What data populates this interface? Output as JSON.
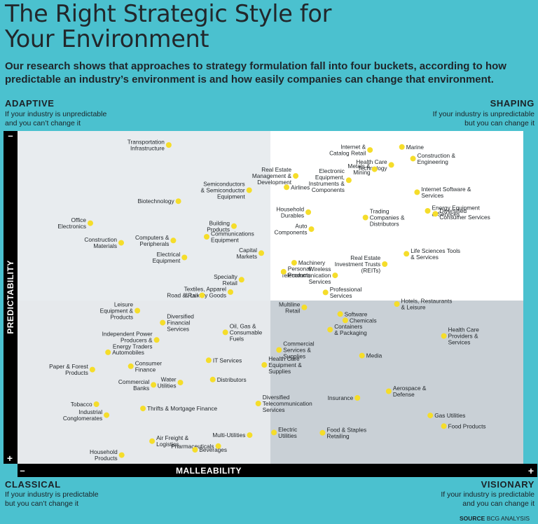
{
  "header": {
    "title_line1": "The Right Strategic Style for",
    "title_line2": "Your Environment",
    "subtitle": "Our research shows that approaches to strategy formulation fall into four buckets, according to how predictable an industry’s environment is and how easily companies can change that environment."
  },
  "quadrants": {
    "adaptive": {
      "name": "ADAPTIVE",
      "line1": "If your industry is unpredictable",
      "line2": "and you can’t change it"
    },
    "shaping": {
      "name": "SHAPING",
      "line1": "If your industry is unpredictable",
      "line2": "but you can change it"
    },
    "classical": {
      "name": "CLASSICAL",
      "line1": "If your industry is predictable",
      "line2": "but you can’t change it"
    },
    "visionary": {
      "name": "VISIONARY",
      "line1": "If your industry is predictable",
      "line2": "and you can change it"
    }
  },
  "source": {
    "label": "SOURCE",
    "text": "BCG ANALYSIS"
  },
  "colors": {
    "background": "#4bc1cf",
    "quad_tl": "#e8ecef",
    "quad_tr": "#ffffff",
    "quad_bl": "#e6e9ec",
    "quad_br": "#c9d0d6",
    "dot": "#f5dd2a",
    "axis": "#000000"
  },
  "chart_data": {
    "type": "scatter",
    "xlabel": "MALLEABILITY",
    "ylabel": "PREDICTABILITY",
    "x_axis_ends": {
      "low": "–",
      "high": "+"
    },
    "y_axis_ends": {
      "top": "–",
      "bottom": "+"
    },
    "xlim": [
      0,
      100
    ],
    "ylim": [
      0,
      100
    ],
    "x_split": 50,
    "y_split": 50,
    "legend": "none",
    "grid": false,
    "points": [
      {
        "label": "Transportation\nInfrastructure",
        "x": 29.9,
        "y": 95.8
      },
      {
        "label": "Internet &\nCatalog Retail",
        "x": 69.7,
        "y": 94.3
      },
      {
        "label": "Marine",
        "x": 76.0,
        "y": 95.2
      },
      {
        "label": "Construction &\nEngineering",
        "x": 78.2,
        "y": 91.7
      },
      {
        "label": "Real Estate\nManagement &\nDevelopment",
        "x": 55.0,
        "y": 86.5
      },
      {
        "label": "Electronic\nEquipment,\nInstruments &\nComponents",
        "x": 65.5,
        "y": 85.2
      },
      {
        "label": "Health Care\nTechnology",
        "x": 73.9,
        "y": 89.8
      },
      {
        "label": "Airlines",
        "x": 53.2,
        "y": 83.1
      },
      {
        "label": "Metals &\nMining",
        "x": 70.6,
        "y": 88.5
      },
      {
        "label": "Internet Software &\nServices",
        "x": 79.0,
        "y": 81.6
      },
      {
        "label": "Semiconductors\n& Semiconductor\nEquipment",
        "x": 45.8,
        "y": 82.2
      },
      {
        "label": "Biotechnology",
        "x": 31.8,
        "y": 78.9
      },
      {
        "label": "Energy Equipment\n& Services",
        "x": 81.1,
        "y": 76.0
      },
      {
        "label": "Household\nDurables",
        "x": 57.5,
        "y": 75.6
      },
      {
        "label": "Trading\nCompanies &\nDistributors",
        "x": 68.8,
        "y": 74.0
      },
      {
        "label": "Diversified\nConsumer Services",
        "x": 82.6,
        "y": 75.1
      },
      {
        "label": "Office\nElectronics",
        "x": 14.4,
        "y": 72.3
      },
      {
        "label": "Building\nProducts",
        "x": 42.8,
        "y": 71.4
      },
      {
        "label": "Auto\nComponents",
        "x": 58.1,
        "y": 70.5
      },
      {
        "label": "Computers &\nPeripherals",
        "x": 30.8,
        "y": 67.1
      },
      {
        "label": "Communications\nEquipment",
        "x": 37.4,
        "y": 68.2
      },
      {
        "label": "Construction\nMaterials",
        "x": 20.5,
        "y": 66.4
      },
      {
        "label": "Capital\nMarkets",
        "x": 48.2,
        "y": 63.3
      },
      {
        "label": "Life Sciences Tools\n& Services",
        "x": 76.9,
        "y": 63.1
      },
      {
        "label": "Wireless\nTelecommunication\nServices",
        "x": 62.8,
        "y": 56.6
      },
      {
        "label": "Electrical\nEquipment",
        "x": 33.0,
        "y": 62.0
      },
      {
        "label": "Machinery",
        "x": 54.7,
        "y": 60.4
      },
      {
        "label": "Real Estate\nInvestment Trusts\n(REITs)",
        "x": 72.6,
        "y": 60.0
      },
      {
        "label": "Personal\nProducts",
        "x": 52.6,
        "y": 57.7
      },
      {
        "label": "Specialty\nRetail",
        "x": 44.3,
        "y": 55.3
      },
      {
        "label": "Textiles, Apparel\n& Luxury Goods",
        "x": 42.1,
        "y": 51.6
      },
      {
        "label": "Road & Rail",
        "x": 36.5,
        "y": 50.6
      },
      {
        "label": "Professional\nServices",
        "x": 60.9,
        "y": 51.5
      },
      {
        "label": "Hotels, Restaurants\n& Leisure",
        "x": 75.0,
        "y": 48.0
      },
      {
        "label": "Leisure\nEquipment &\nProducts",
        "x": 23.7,
        "y": 46.0
      },
      {
        "label": "Multiline\nRetail",
        "x": 56.7,
        "y": 47.0
      },
      {
        "label": "Software",
        "x": 63.8,
        "y": 45.0
      },
      {
        "label": "Chemicals",
        "x": 64.8,
        "y": 43.1
      },
      {
        "label": "Diversified\nFinancial\nServices",
        "x": 28.7,
        "y": 42.4
      },
      {
        "label": "Independent Power\nProducers &\nEnergy Traders",
        "x": 27.5,
        "y": 37.2
      },
      {
        "label": "Oil, Gas &\nConsumable\nFuels",
        "x": 41.1,
        "y": 39.5
      },
      {
        "label": "Containers\n& Packaging",
        "x": 61.8,
        "y": 40.3
      },
      {
        "label": "Health Care\nProviders &\nServices",
        "x": 84.3,
        "y": 38.4
      },
      {
        "label": "Commercial\nServices &\nSupplies",
        "x": 51.7,
        "y": 34.2
      },
      {
        "label": "Automobiles",
        "x": 17.9,
        "y": 33.5
      },
      {
        "label": "Media",
        "x": 68.1,
        "y": 32.5
      },
      {
        "label": "IT Services",
        "x": 37.8,
        "y": 31.1
      },
      {
        "label": "Health Care\nEquipment &\nSupplies",
        "x": 48.8,
        "y": 29.7
      },
      {
        "label": "Paper & Forest\nProducts",
        "x": 14.8,
        "y": 28.3
      },
      {
        "label": "Consumer\nFinance",
        "x": 22.4,
        "y": 29.3
      },
      {
        "label": "Water\nUtilities",
        "x": 32.2,
        "y": 24.4
      },
      {
        "label": "Commercial\nBanks",
        "x": 26.9,
        "y": 23.7
      },
      {
        "label": "Distributors",
        "x": 38.6,
        "y": 25.3
      },
      {
        "label": "Aerospace &\nDefense",
        "x": 73.4,
        "y": 21.8
      },
      {
        "label": "Insurance",
        "x": 67.2,
        "y": 19.8
      },
      {
        "label": "Diversified\nTelecommunication\nServices",
        "x": 47.6,
        "y": 18.1
      },
      {
        "label": "Tobacco",
        "x": 15.6,
        "y": 17.9
      },
      {
        "label": "Thrifts & Mortgage Finance",
        "x": 24.8,
        "y": 16.6
      },
      {
        "label": "Gas Utilities",
        "x": 81.6,
        "y": 14.5
      },
      {
        "label": "Industrial\nConglomerates",
        "x": 17.6,
        "y": 14.6
      },
      {
        "label": "Food Products",
        "x": 84.3,
        "y": 11.3
      },
      {
        "label": "Food & Staples\nRetailing",
        "x": 60.3,
        "y": 9.3
      },
      {
        "label": "Multi-Utilities",
        "x": 45.9,
        "y": 8.6
      },
      {
        "label": "Electric\nUtilities",
        "x": 50.7,
        "y": 9.4
      },
      {
        "label": "Air Freight &\nLogistics",
        "x": 26.6,
        "y": 6.8
      },
      {
        "label": "Pharmaceuticals",
        "x": 39.7,
        "y": 5.3
      },
      {
        "label": "Beverages",
        "x": 35.1,
        "y": 4.2
      },
      {
        "label": "Household\nProducts",
        "x": 20.6,
        "y": 2.6
      }
    ]
  }
}
